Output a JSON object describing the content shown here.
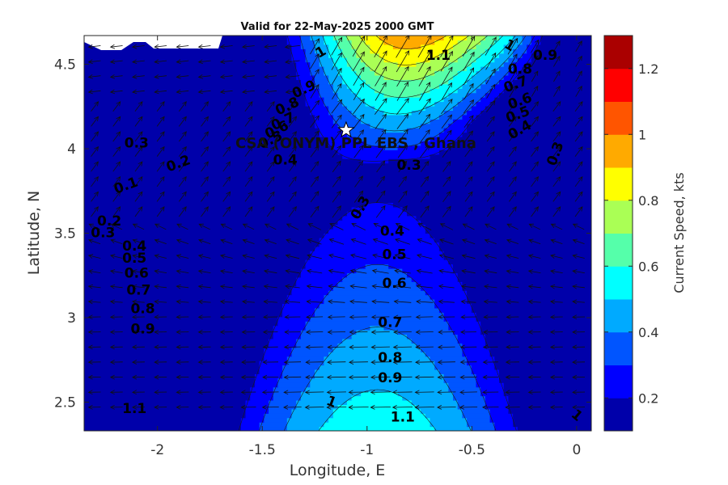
{
  "chart_data": {
    "type": "heatmap",
    "title": "Valid for 22-May-2025 2000 GMT",
    "xlabel": "Longitude, E",
    "ylabel": "Latitude, N",
    "colorbar_label": "Current Speed, kts",
    "xlim": [
      -2.35,
      0.07
    ],
    "ylim": [
      2.33,
      4.67
    ],
    "x_ticks": [
      -2,
      -1.5,
      -1,
      -0.5,
      0
    ],
    "x_tick_labels": [
      "-2",
      "-1.5",
      "-1",
      "-0.5",
      "0"
    ],
    "y_ticks": [
      2.5,
      3,
      3.5,
      4,
      4.5
    ],
    "y_tick_labels": [
      "2.5",
      "3",
      "3.5",
      "4",
      "4.5"
    ],
    "colorbar": {
      "range": [
        0.1,
        1.3
      ],
      "ticks": [
        0.2,
        0.4,
        0.6,
        0.8,
        1,
        1.2
      ],
      "tick_labels": [
        "0.2",
        "0.4",
        "0.6",
        "0.8",
        "1",
        "1.2"
      ],
      "levels": [
        0.1,
        0.2,
        0.3,
        0.4,
        0.5,
        0.6,
        0.7,
        0.8,
        0.9,
        1.0,
        1.1,
        1.2,
        1.3
      ],
      "colors": [
        "#0000aa",
        "#0000ff",
        "#0055ff",
        "#00aaff",
        "#00ffff",
        "#55ffaa",
        "#aaff55",
        "#ffff00",
        "#ffaa00",
        "#ff5500",
        "#ff0000",
        "#aa0000"
      ]
    },
    "grid": false,
    "site": {
      "name": "CSA (ONYM) PPL EBS  , Ghana",
      "lon": -1.1,
      "lat": 4.11,
      "marker": "white star"
    },
    "contour_labels": [
      {
        "text": "1",
        "lon": -1.22,
        "lat": 4.57,
        "rot": -30
      },
      {
        "text": "1.1",
        "lon": -0.66,
        "lat": 4.55,
        "rot": 0
      },
      {
        "text": "1",
        "lon": -0.32,
        "lat": 4.61,
        "rot": 30
      },
      {
        "text": "0.9",
        "lon": -0.15,
        "lat": 4.55,
        "rot": 0
      },
      {
        "text": "0.8",
        "lon": -0.27,
        "lat": 4.47,
        "rot": 0
      },
      {
        "text": "0.7",
        "lon": -0.29,
        "lat": 4.38,
        "rot": -20
      },
      {
        "text": "0.6",
        "lon": -0.27,
        "lat": 4.28,
        "rot": -20
      },
      {
        "text": "0.5",
        "lon": -0.28,
        "lat": 4.2,
        "rot": -20
      },
      {
        "text": "0.4",
        "lon": -0.27,
        "lat": 4.11,
        "rot": -30
      },
      {
        "text": "0.3",
        "lon": -0.1,
        "lat": 3.97,
        "rot": -70
      },
      {
        "text": "0.9",
        "lon": -1.3,
        "lat": 4.35,
        "rot": -25
      },
      {
        "text": "0.8",
        "lon": -1.38,
        "lat": 4.25,
        "rot": -25
      },
      {
        "text": "0.7",
        "lon": -1.4,
        "lat": 4.16,
        "rot": -25
      },
      {
        "text": "0.6",
        "lon": -1.43,
        "lat": 4.11,
        "rot": -25
      },
      {
        "text": "0.5",
        "lon": -1.46,
        "lat": 4.05,
        "rot": -25
      },
      {
        "text": "0.4",
        "lon": -1.39,
        "lat": 3.93,
        "rot": 0
      },
      {
        "text": "0.3",
        "lon": -2.1,
        "lat": 4.03,
        "rot": 0
      },
      {
        "text": "0.2",
        "lon": -1.9,
        "lat": 3.91,
        "rot": -20
      },
      {
        "text": "0.1",
        "lon": -2.15,
        "lat": 3.78,
        "rot": -20
      },
      {
        "text": "0.3",
        "lon": -0.8,
        "lat": 3.9,
        "rot": 0
      },
      {
        "text": "0.3",
        "lon": -1.03,
        "lat": 3.65,
        "rot": -60
      },
      {
        "text": "0.2",
        "lon": -2.23,
        "lat": 3.57,
        "rot": 0
      },
      {
        "text": "0.3",
        "lon": -2.26,
        "lat": 3.5,
        "rot": 0
      },
      {
        "text": "0.4",
        "lon": -2.11,
        "lat": 3.42,
        "rot": 0
      },
      {
        "text": "0.5",
        "lon": -2.11,
        "lat": 3.35,
        "rot": 0
      },
      {
        "text": "0.6",
        "lon": -2.1,
        "lat": 3.26,
        "rot": 0
      },
      {
        "text": "0.7",
        "lon": -2.09,
        "lat": 3.16,
        "rot": 0
      },
      {
        "text": "0.8",
        "lon": -2.07,
        "lat": 3.05,
        "rot": 0
      },
      {
        "text": "0.9",
        "lon": -2.07,
        "lat": 2.93,
        "rot": 0
      },
      {
        "text": "0.4",
        "lon": -0.88,
        "lat": 3.51,
        "rot": 0
      },
      {
        "text": "0.5",
        "lon": -0.87,
        "lat": 3.37,
        "rot": 0
      },
      {
        "text": "0.6",
        "lon": -0.87,
        "lat": 3.2,
        "rot": 0
      },
      {
        "text": "0.7",
        "lon": -0.89,
        "lat": 2.97,
        "rot": 0
      },
      {
        "text": "0.8",
        "lon": -0.89,
        "lat": 2.76,
        "rot": 0
      },
      {
        "text": "0.9",
        "lon": -0.89,
        "lat": 2.64,
        "rot": 0
      },
      {
        "text": "1.1",
        "lon": -2.11,
        "lat": 2.46,
        "rot": 0
      },
      {
        "text": "1",
        "lon": -1.17,
        "lat": 2.5,
        "rot": 20
      },
      {
        "text": "1.1",
        "lon": -0.83,
        "lat": 2.41,
        "rot": 0
      },
      {
        "text": "1",
        "lon": 0.0,
        "lat": 2.42,
        "rot": 40
      }
    ]
  }
}
